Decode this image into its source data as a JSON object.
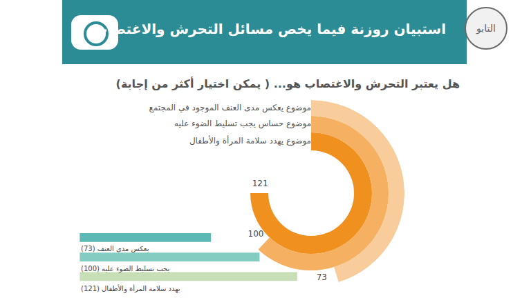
{
  "header": {
    "title": "استبيان روزنة فيما يخص مسائل التحرش والاغتصاب",
    "logo": "التابو"
  },
  "question": "هل يعتبر التحرش والاغتصاب هو... ( يمكن اختيار أكثر من إجابة)",
  "chart_data": [
    {
      "type": "radial_bar",
      "categories": [
        "موضوع يهدد سلامة المرأة والأطفال",
        "موضوع حساس يجب تسليط الضوء عليه",
        "موضوع يعكس مدى العنف الموجود في المجتمع"
      ],
      "values": [
        121,
        100,
        73
      ],
      "colors": [
        "#f0901e",
        "#f5b062",
        "#f9cd9b"
      ],
      "data_labels": true
    },
    {
      "type": "bar",
      "orientation": "horizontal",
      "categories": [
        "يعكس مدى العنف (73)",
        "يجب تسليط الضوء عليه (100)",
        "يهدد سلامة المرأة والأطفال (121)"
      ],
      "values": [
        73,
        100,
        121
      ],
      "colors": [
        "#5cb9b5",
        "#84ccc2",
        "#c8deb6"
      ],
      "xlim": [
        0,
        121
      ],
      "tick_labels": false
    }
  ]
}
